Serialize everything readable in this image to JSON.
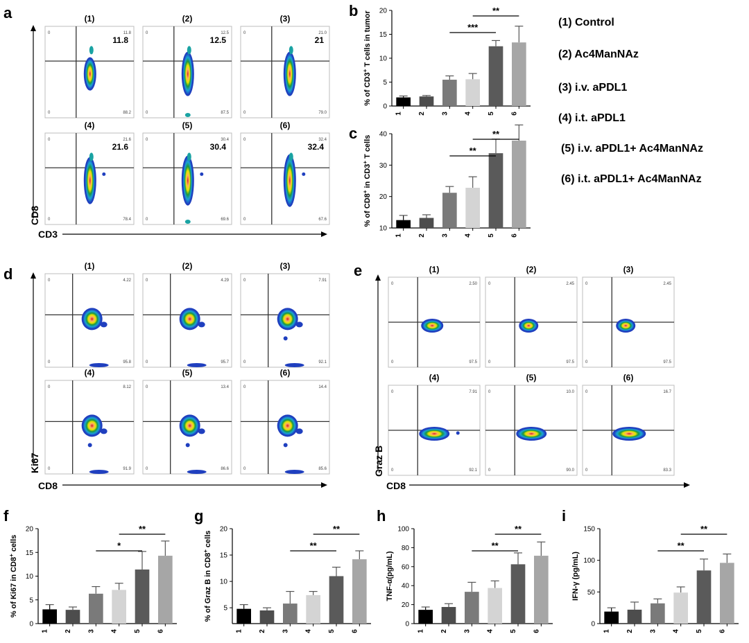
{
  "panel_labels": {
    "a": "a",
    "b": "b",
    "c": "c",
    "d": "d",
    "e": "e",
    "f": "f",
    "g": "g",
    "h": "h",
    "i": "i"
  },
  "legend": [
    "(1) Control",
    "(2) Ac4ManNAz",
    "(3) i.v. aPDL1",
    "(4) i.t. aPDL1",
    "(5) i.v. aPDL1+ Ac4ManNAz",
    "(6) i.t. aPDL1+ Ac4ManNAz"
  ],
  "bar_colors": [
    "#000000",
    "#4d4d4d",
    "#7a7a7a",
    "#d4d4d4",
    "#5a5a5a",
    "#a6a6a6"
  ],
  "flow_a": {
    "ylabel": "CD8",
    "xlabel": "CD3",
    "plots": [
      {
        "label": "(1)",
        "ur": "11.8",
        "ur_big": "11.8",
        "lr": "88.2",
        "ul": "0",
        "ll": "0"
      },
      {
        "label": "(2)",
        "ur": "12.5",
        "ur_big": "12.5",
        "lr": "87.5",
        "ul": "0",
        "ll": "0"
      },
      {
        "label": "(3)",
        "ur": "21.0",
        "ur_big": "21",
        "lr": "79.0",
        "ul": "0",
        "ll": "0"
      },
      {
        "label": "(4)",
        "ur": "21.6",
        "ur_big": "21.6",
        "lr": "78.4",
        "ul": "0",
        "ll": "0"
      },
      {
        "label": "(5)",
        "ur": "30.4",
        "ur_big": "30.4",
        "lr": "69.6",
        "ul": "0",
        "ll": "0"
      },
      {
        "label": "(6)",
        "ur": "32.4",
        "ur_big": "32.4",
        "lr": "67.6",
        "ul": "0",
        "ll": "0"
      }
    ]
  },
  "flow_d": {
    "ylabel": "Ki67",
    "xlabel": "CD8",
    "plots": [
      {
        "label": "(1)",
        "ur": "4.22",
        "lr": "95.8",
        "ul": "0",
        "ll": "0"
      },
      {
        "label": "(2)",
        "ur": "4.29",
        "lr": "95.7",
        "ul": "0",
        "ll": "0"
      },
      {
        "label": "(3)",
        "ur": "7.91",
        "lr": "92.1",
        "ul": "0",
        "ll": "0"
      },
      {
        "label": "(4)",
        "ur": "8.12",
        "lr": "91.9",
        "ul": "0",
        "ll": "0"
      },
      {
        "label": "(5)",
        "ur": "13.4",
        "lr": "86.6",
        "ul": "0",
        "ll": "0"
      },
      {
        "label": "(6)",
        "ur": "14.4",
        "lr": "85.6",
        "ul": "0",
        "ll": "0"
      }
    ]
  },
  "flow_e": {
    "ylabel": "Graz B",
    "xlabel": "CD8",
    "plots": [
      {
        "label": "(1)",
        "ur": "2.50",
        "lr": "97.5",
        "ul": "0",
        "ll": "0"
      },
      {
        "label": "(2)",
        "ur": "2.45",
        "lr": "97.5",
        "ul": "0",
        "ll": "0"
      },
      {
        "label": "(3)",
        "ur": "2.45",
        "lr": "97.5",
        "ul": "0",
        "ll": "0"
      },
      {
        "label": "(4)",
        "ur": "7.91",
        "lr": "92.1",
        "ul": "0",
        "ll": "0"
      },
      {
        "label": "(5)",
        "ur": "10.0",
        "lr": "90.0",
        "ul": "0",
        "ll": "0"
      },
      {
        "label": "(6)",
        "ur": "16.7",
        "lr": "83.3",
        "ul": "0",
        "ll": "0"
      }
    ]
  },
  "chart_data": [
    {
      "id": "b",
      "type": "bar",
      "categories": [
        "1",
        "2",
        "3",
        "4",
        "5",
        "6"
      ],
      "values": [
        1.8,
        2.0,
        5.5,
        5.6,
        12.5,
        13.3
      ],
      "errors": [
        0.3,
        0.2,
        0.8,
        1.2,
        1.2,
        3.4
      ],
      "ylim": [
        0,
        20
      ],
      "yticks": [
        "0",
        "5",
        "10",
        "15",
        "20"
      ],
      "ylabel_parts": [
        "% of CD3",
        "+",
        " T cells in tumor"
      ],
      "significance": [
        {
          "from": "3",
          "to": "5",
          "label": "***"
        },
        {
          "from": "4",
          "to": "6",
          "label": "**"
        }
      ]
    },
    {
      "id": "c",
      "type": "bar",
      "categories": [
        "1",
        "2",
        "3",
        "4",
        "5",
        "6"
      ],
      "values": [
        12.5,
        13.2,
        21.2,
        22.8,
        33.8,
        37.8
      ],
      "errors": [
        1.5,
        1.0,
        2.0,
        3.5,
        4.5,
        5.0
      ],
      "ylim": [
        10,
        40
      ],
      "yticks": [
        "10",
        "20",
        "30",
        "40"
      ],
      "ylabel_parts": [
        "% of CD8",
        "+",
        "  in  CD3",
        "+",
        " T cells"
      ],
      "significance": [
        {
          "from": "3",
          "to": "5",
          "label": "**"
        },
        {
          "from": "4",
          "to": "6",
          "label": "**"
        }
      ]
    },
    {
      "id": "f",
      "type": "bar",
      "categories": [
        "1",
        "2",
        "3",
        "4",
        "5",
        "6"
      ],
      "values": [
        3.0,
        2.9,
        6.3,
        7.1,
        11.4,
        14.3
      ],
      "errors": [
        1.0,
        0.6,
        1.5,
        1.4,
        3.8,
        3.1
      ],
      "ylim": [
        0,
        20
      ],
      "yticks": [
        "0",
        "5",
        "10",
        "15",
        "20"
      ],
      "ylabel_parts": [
        "% of  Ki67 in CD8",
        "+",
        " cells"
      ],
      "significance": [
        {
          "from": "3",
          "to": "5",
          "label": "*"
        },
        {
          "from": "4",
          "to": "6",
          "label": "**"
        }
      ]
    },
    {
      "id": "g",
      "type": "bar",
      "categories": [
        "1",
        "2",
        "3",
        "4",
        "5",
        "6"
      ],
      "values": [
        4.8,
        4.5,
        5.8,
        7.4,
        11.0,
        14.2
      ],
      "errors": [
        0.8,
        0.5,
        2.3,
        0.7,
        1.7,
        1.6
      ],
      "ylim": [
        2,
        20
      ],
      "yticks": [
        "5",
        "10",
        "15",
        "20"
      ],
      "ylabel_parts": [
        "% of  Graz B in CD8",
        "+",
        " cells"
      ],
      "significance": [
        {
          "from": "3",
          "to": "5",
          "label": "**"
        },
        {
          "from": "4",
          "to": "6",
          "label": "**"
        }
      ]
    },
    {
      "id": "h",
      "type": "bar",
      "categories": [
        "1",
        "2",
        "3",
        "4",
        "5",
        "6"
      ],
      "values": [
        14.5,
        17.5,
        33.5,
        37.5,
        62.5,
        71.5
      ],
      "errors": [
        3.0,
        3.5,
        10.0,
        7.5,
        12.0,
        14.5
      ],
      "ylim": [
        0,
        100
      ],
      "yticks": [
        "0",
        "20",
        "40",
        "60",
        "80",
        "100"
      ],
      "ylabel_parts": [
        "TNF-α(pg/mL)"
      ],
      "significance": [
        {
          "from": "3",
          "to": "5",
          "label": "**"
        },
        {
          "from": "4",
          "to": "6",
          "label": "**"
        }
      ]
    },
    {
      "id": "i",
      "type": "bar",
      "categories": [
        "1",
        "2",
        "3",
        "4",
        "5",
        "6"
      ],
      "values": [
        19,
        22,
        32,
        49,
        84,
        96
      ],
      "errors": [
        6,
        12,
        7,
        9,
        18,
        14
      ],
      "ylim": [
        0,
        150
      ],
      "yticks": [
        "0",
        "50",
        "100",
        "150"
      ],
      "ylabel_parts": [
        "IFN-γ (pg/mL)"
      ],
      "significance": [
        {
          "from": "3",
          "to": "5",
          "label": "**"
        },
        {
          "from": "4",
          "to": "6",
          "label": "**"
        }
      ]
    }
  ]
}
